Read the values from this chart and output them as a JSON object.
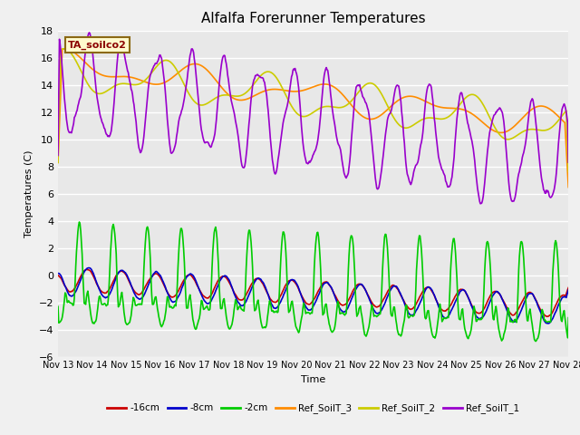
{
  "title": "Alfalfa Forerunner Temperatures",
  "xlabel": "Time",
  "ylabel": "Temperatures (C)",
  "annotation_text": "TA_soilco2",
  "annotation_color": "#8B0000",
  "annotation_bg": "#FFFACD",
  "annotation_border": "#8B6914",
  "ylim": [
    -6,
    18
  ],
  "yticks": [
    -6,
    -4,
    -2,
    0,
    2,
    4,
    6,
    8,
    10,
    12,
    14,
    16,
    18
  ],
  "bg_color": "#E8E8E8",
  "grid_color": "#FFFFFF",
  "legend_entries": [
    "-16cm",
    "-8cm",
    "-2cm",
    "Ref_SoilT_3",
    "Ref_SoilT_2",
    "Ref_SoilT_1"
  ],
  "line_colors": [
    "#CC0000",
    "#0000CC",
    "#00CC00",
    "#FF8C00",
    "#CCCC00",
    "#9900CC"
  ],
  "line_widths": [
    1.2,
    1.2,
    1.2,
    1.2,
    1.2,
    1.2
  ],
  "xtick_labels": [
    "Nov 13",
    "Nov 14",
    "Nov 15",
    "Nov 16",
    "Nov 17",
    "Nov 18",
    "Nov 19",
    "Nov 20",
    "Nov 21",
    "Nov 22",
    "Nov 23",
    "Nov 24",
    "Nov 25",
    "Nov 26",
    "Nov 27",
    "Nov 28"
  ]
}
